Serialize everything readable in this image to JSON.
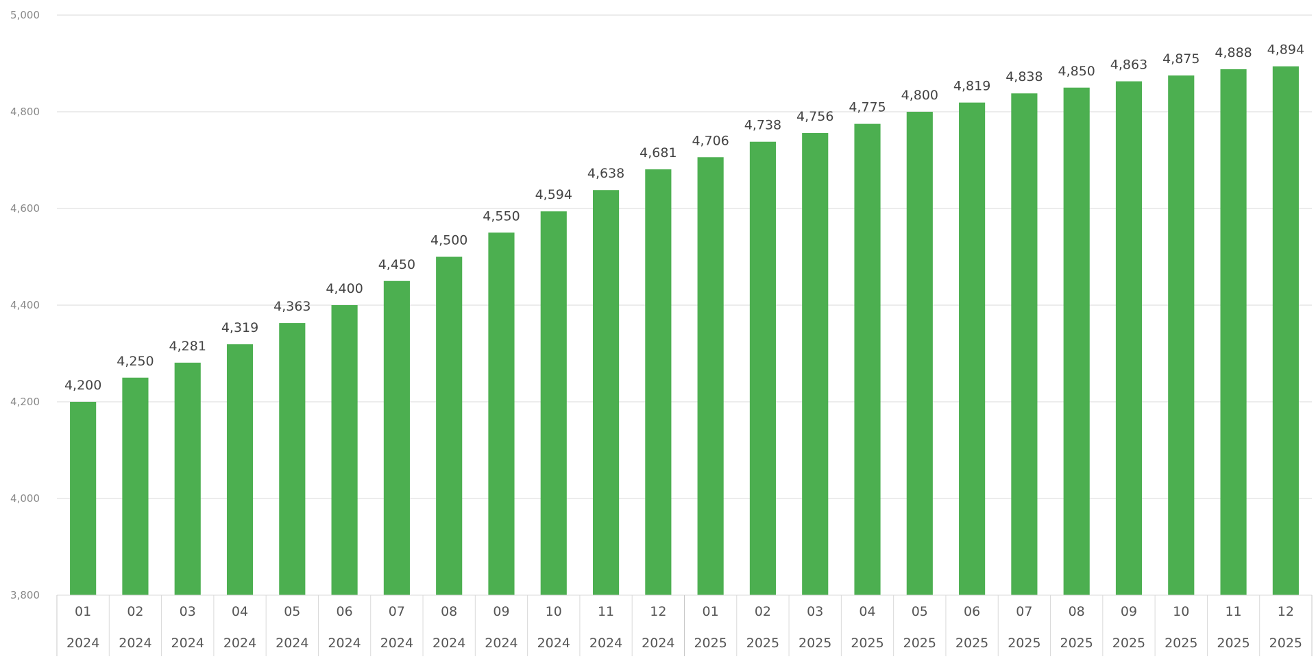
{
  "chart_data": {
    "type": "bar",
    "title": "",
    "xlabel": "",
    "ylabel": "",
    "ylim": [
      3800,
      5000
    ],
    "yticks": [
      3800,
      4000,
      4200,
      4400,
      4600,
      4800,
      5000
    ],
    "y_tick_labels": [
      "3,800",
      "4,000",
      "4,200",
      "4,400",
      "4,600",
      "4,800",
      "5,000"
    ],
    "grid": true,
    "legend": "none",
    "bar_color": "#4caf50",
    "categories": [
      {
        "month": "01",
        "year": "2024"
      },
      {
        "month": "02",
        "year": "2024"
      },
      {
        "month": "03",
        "year": "2024"
      },
      {
        "month": "04",
        "year": "2024"
      },
      {
        "month": "05",
        "year": "2024"
      },
      {
        "month": "06",
        "year": "2024"
      },
      {
        "month": "07",
        "year": "2024"
      },
      {
        "month": "08",
        "year": "2024"
      },
      {
        "month": "09",
        "year": "2024"
      },
      {
        "month": "10",
        "year": "2024"
      },
      {
        "month": "11",
        "year": "2024"
      },
      {
        "month": "12",
        "year": "2024"
      },
      {
        "month": "01",
        "year": "2025"
      },
      {
        "month": "02",
        "year": "2025"
      },
      {
        "month": "03",
        "year": "2025"
      },
      {
        "month": "04",
        "year": "2025"
      },
      {
        "month": "05",
        "year": "2025"
      },
      {
        "month": "06",
        "year": "2025"
      },
      {
        "month": "07",
        "year": "2025"
      },
      {
        "month": "08",
        "year": "2025"
      },
      {
        "month": "09",
        "year": "2025"
      },
      {
        "month": "10",
        "year": "2025"
      },
      {
        "month": "11",
        "year": "2025"
      },
      {
        "month": "12",
        "year": "2025"
      }
    ],
    "values": [
      4200,
      4250,
      4281,
      4319,
      4363,
      4400,
      4450,
      4500,
      4550,
      4594,
      4638,
      4681,
      4706,
      4738,
      4756,
      4775,
      4800,
      4819,
      4838,
      4850,
      4863,
      4875,
      4888,
      4894
    ],
    "data_labels": [
      "4,200",
      "4,250",
      "4,281",
      "4,319",
      "4,363",
      "4,400",
      "4,450",
      "4,500",
      "4,550",
      "4,594",
      "4,638",
      "4,681",
      "4,706",
      "4,738",
      "4,756",
      "4,775",
      "4,800",
      "4,819",
      "4,838",
      "4,850",
      "4,863",
      "4,875",
      "4,888",
      "4,894"
    ]
  }
}
